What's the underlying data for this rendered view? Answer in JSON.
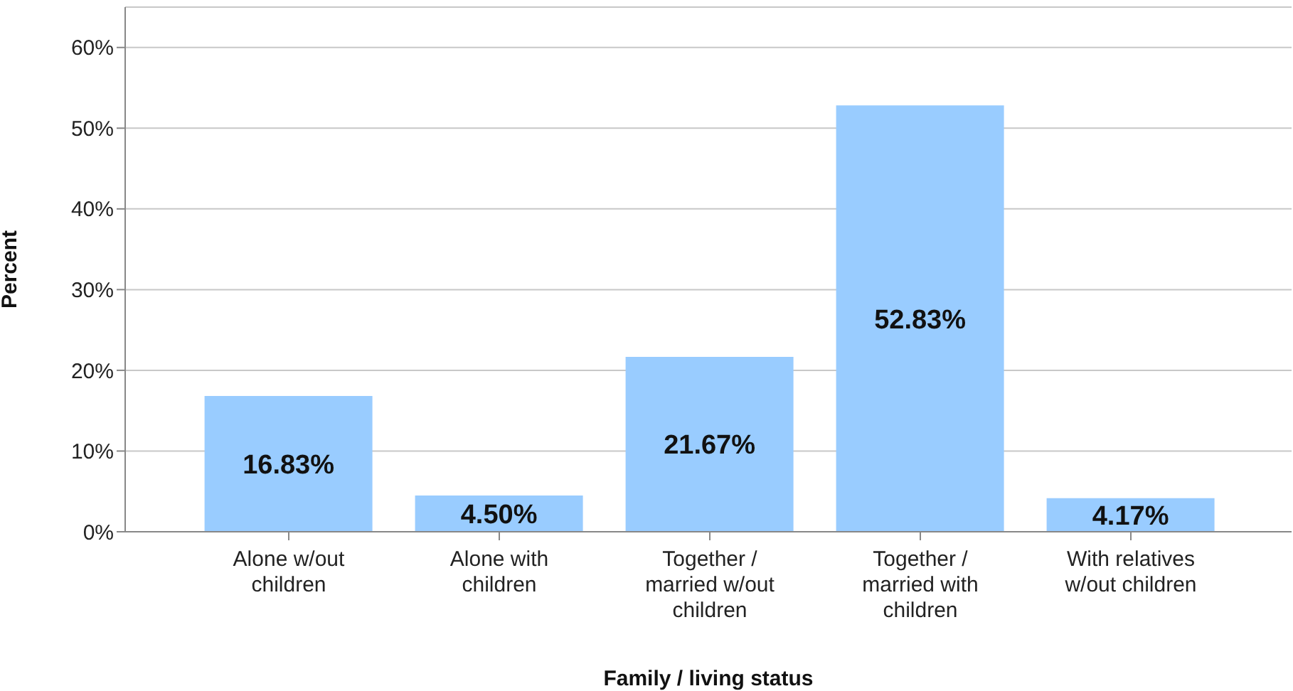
{
  "chart_data": {
    "type": "bar",
    "xlabel": "Family / living status",
    "ylabel": "Percent",
    "categories": [
      "Alone w/out children",
      "Alone with children",
      "Together / married w/out children",
      "Together / married with children",
      "With relatives w/out children"
    ],
    "values": [
      16.83,
      4.5,
      21.67,
      52.83,
      4.17
    ],
    "value_labels": [
      "16.83%",
      "4.50%",
      "21.67%",
      "52.83%",
      "4.17%"
    ],
    "color": "#99ccff",
    "ylim": [
      0,
      65
    ],
    "yticks": [
      {
        "value": 0,
        "label": "0%"
      },
      {
        "value": 10,
        "label": "10%"
      },
      {
        "value": 20,
        "label": "20%"
      },
      {
        "value": 30,
        "label": "30%"
      },
      {
        "value": 40,
        "label": "40%"
      },
      {
        "value": 50,
        "label": "50%"
      },
      {
        "value": 60,
        "label": "60%"
      }
    ],
    "grid": "y"
  }
}
